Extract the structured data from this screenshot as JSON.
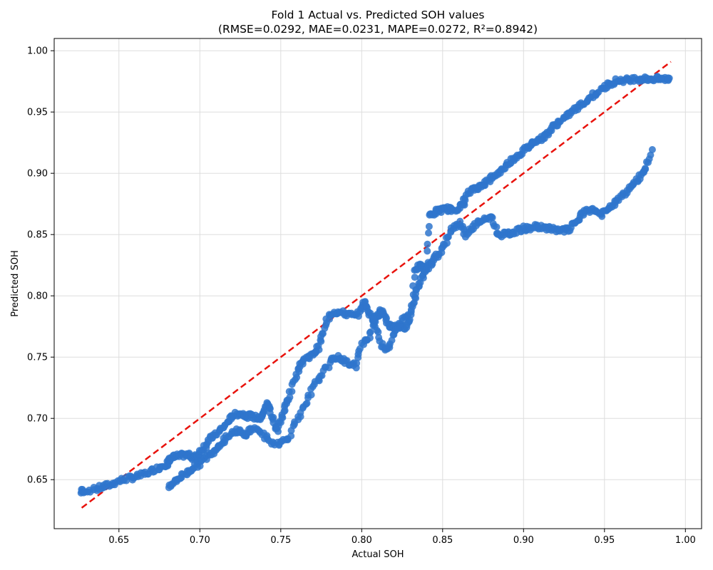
{
  "chart_data": {
    "type": "scatter",
    "title": "Fold 1 Actual vs. Predicted SOH values",
    "subtitle": "(RMSE=0.0292, MAE=0.0231, MAPE=0.0272, R²=0.8942)",
    "xlabel": "Actual SOH",
    "ylabel": "Predicted SOH",
    "xlim": [
      0.61,
      1.01
    ],
    "ylim": [
      0.61,
      1.01
    ],
    "x_ticks": [
      "0.65",
      "0.70",
      "0.75",
      "0.80",
      "0.85",
      "0.90",
      "0.95",
      "1.00"
    ],
    "y_ticks": [
      "0.65",
      "0.70",
      "0.75",
      "0.80",
      "0.85",
      "0.90",
      "0.95",
      "1.00"
    ],
    "grid": true,
    "marker_color": "#2f76cc",
    "reference_line": {
      "color": "#e8120c",
      "style": "dashed",
      "x": [
        0.627,
        0.991
      ],
      "y": [
        0.627,
        0.991
      ]
    },
    "traces": [
      {
        "x": [
          0.627,
          0.628,
          0.635,
          0.64,
          0.645,
          0.65,
          0.655,
          0.66,
          0.665,
          0.67,
          0.675,
          0.68,
          0.681,
          0.683,
          0.686,
          0.69,
          0.693,
          0.696,
          0.698,
          0.7,
          0.703,
          0.706,
          0.71,
          0.714,
          0.718,
          0.72,
          0.724,
          0.728,
          0.73,
          0.734,
          0.738,
          0.74,
          0.742,
          0.745,
          0.748,
          0.75,
          0.753,
          0.756,
          0.76,
          0.763,
          0.766,
          0.77,
          0.773,
          0.776,
          0.78,
          0.784,
          0.788,
          0.792,
          0.796,
          0.8,
          0.802,
          0.805,
          0.808,
          0.81,
          0.812,
          0.815,
          0.818,
          0.82,
          0.823,
          0.826,
          0.83,
          0.833,
          0.836,
          0.838,
          0.84,
          0.842,
          0.845,
          0.848,
          0.85,
          0.853,
          0.856,
          0.86,
          0.863,
          0.866,
          0.87,
          0.873,
          0.876,
          0.88,
          0.884,
          0.888,
          0.892,
          0.896,
          0.9,
          0.903,
          0.906,
          0.91,
          0.913,
          0.916,
          0.92,
          0.924,
          0.928,
          0.932,
          0.936,
          0.94,
          0.944,
          0.948,
          0.952,
          0.956,
          0.96,
          0.964,
          0.968,
          0.972,
          0.976,
          0.98,
          0.984,
          0.988,
          0.99
        ],
        "y": [
          0.64,
          0.641,
          0.642,
          0.644,
          0.646,
          0.649,
          0.651,
          0.652,
          0.654,
          0.657,
          0.66,
          0.663,
          0.665,
          0.668,
          0.669,
          0.67,
          0.67,
          0.668,
          0.669,
          0.672,
          0.677,
          0.683,
          0.687,
          0.692,
          0.698,
          0.702,
          0.704,
          0.703,
          0.702,
          0.701,
          0.7,
          0.706,
          0.713,
          0.7,
          0.69,
          0.7,
          0.71,
          0.72,
          0.738,
          0.745,
          0.75,
          0.752,
          0.758,
          0.77,
          0.785,
          0.787,
          0.786,
          0.785,
          0.783,
          0.79,
          0.795,
          0.785,
          0.78,
          0.785,
          0.788,
          0.78,
          0.775,
          0.775,
          0.775,
          0.774,
          0.78,
          0.822,
          0.824,
          0.823,
          0.822,
          0.865,
          0.868,
          0.87,
          0.87,
          0.871,
          0.87,
          0.872,
          0.876,
          0.884,
          0.888,
          0.889,
          0.892,
          0.896,
          0.9,
          0.905,
          0.91,
          0.914,
          0.918,
          0.922,
          0.926,
          0.928,
          0.93,
          0.935,
          0.94,
          0.944,
          0.948,
          0.952,
          0.956,
          0.96,
          0.965,
          0.968,
          0.972,
          0.975,
          0.976,
          0.976,
          0.977,
          0.977,
          0.977,
          0.977,
          0.977,
          0.977,
          0.977
        ]
      },
      {
        "x": [
          0.681,
          0.684,
          0.688,
          0.692,
          0.696,
          0.7,
          0.704,
          0.708,
          0.712,
          0.716,
          0.72,
          0.724,
          0.728,
          0.73,
          0.735,
          0.74,
          0.745,
          0.75,
          0.755,
          0.76,
          0.765,
          0.77,
          0.775,
          0.78,
          0.784,
          0.788,
          0.792,
          0.796,
          0.8,
          0.804,
          0.808,
          0.812,
          0.816,
          0.82,
          0.825,
          0.83,
          0.833,
          0.836,
          0.839,
          0.842,
          0.845,
          0.848,
          0.852,
          0.856,
          0.86,
          0.864,
          0.868,
          0.872,
          0.876,
          0.88,
          0.884,
          0.888,
          0.892,
          0.896,
          0.9,
          0.904,
          0.908,
          0.912,
          0.916,
          0.92,
          0.924,
          0.928,
          0.932,
          0.936,
          0.94,
          0.944,
          0.948,
          0.952,
          0.956,
          0.96,
          0.964,
          0.968,
          0.972,
          0.976,
          0.98
        ],
        "y": [
          0.645,
          0.648,
          0.652,
          0.656,
          0.66,
          0.663,
          0.668,
          0.673,
          0.678,
          0.684,
          0.689,
          0.69,
          0.685,
          0.69,
          0.692,
          0.685,
          0.68,
          0.68,
          0.685,
          0.7,
          0.71,
          0.725,
          0.735,
          0.745,
          0.75,
          0.748,
          0.745,
          0.743,
          0.76,
          0.765,
          0.78,
          0.76,
          0.755,
          0.77,
          0.78,
          0.785,
          0.8,
          0.81,
          0.82,
          0.825,
          0.83,
          0.835,
          0.845,
          0.855,
          0.86,
          0.85,
          0.855,
          0.86,
          0.862,
          0.865,
          0.85,
          0.85,
          0.851,
          0.853,
          0.855,
          0.855,
          0.857,
          0.855,
          0.856,
          0.853,
          0.853,
          0.854,
          0.86,
          0.866,
          0.87,
          0.87,
          0.866,
          0.87,
          0.875,
          0.88,
          0.886,
          0.892,
          0.897,
          0.905,
          0.92
        ]
      }
    ]
  }
}
